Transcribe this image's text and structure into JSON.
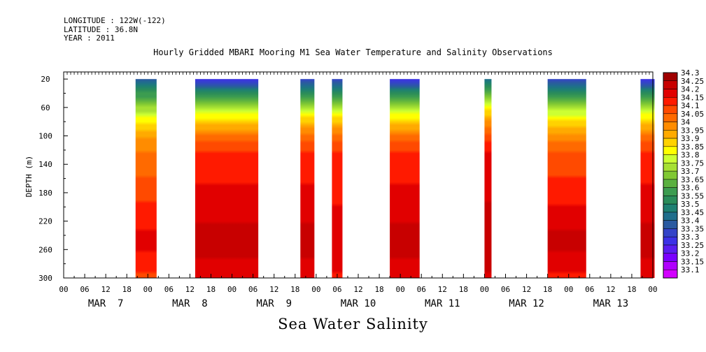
{
  "header": {
    "longitude": "LONGITUDE : 122W(-122)",
    "latitude": "LATITUDE : 36.8N",
    "year": "YEAR : 2011"
  },
  "chart_data": {
    "type": "heatmap",
    "title": "Hourly Gridded MBARI Mooring M1 Sea Water Temperature and Salinity Observations",
    "variable_label": "Sea Water Salinity",
    "ylabel": "DEPTH (m)",
    "y_axis": {
      "range": [
        300,
        10
      ],
      "inverted": true,
      "ticks": [
        20,
        60,
        100,
        140,
        180,
        220,
        260,
        300
      ]
    },
    "x_axis": {
      "range_hours": [
        0,
        168
      ],
      "hour_ticks": [
        "00",
        "06",
        "12",
        "18",
        "00",
        "06",
        "12",
        "18",
        "00",
        "06",
        "12",
        "18",
        "00",
        "06",
        "12",
        "18",
        "00",
        "06",
        "12",
        "18",
        "00",
        "06",
        "12",
        "18",
        "00",
        "06",
        "12",
        "18",
        "00"
      ],
      "day_labels": [
        "MAR  7",
        "MAR  8",
        "MAR  9",
        "MAR 10",
        "MAR 11",
        "MAR 12",
        "MAR 13"
      ]
    },
    "colorbar": {
      "levels": [
        "34.3",
        "34.25",
        "34.2",
        "34.15",
        "34.1",
        "34.05",
        "34",
        "33.95",
        "33.9",
        "33.85",
        "33.8",
        "33.75",
        "33.7",
        "33.65",
        "33.6",
        "33.55",
        "33.5",
        "33.45",
        "33.4",
        "33.35",
        "33.3",
        "33.25",
        "33.2",
        "33.15",
        "33.1"
      ],
      "colors": [
        "#a00000",
        "#c80000",
        "#e10000",
        "#ff1a00",
        "#ff4a00",
        "#ff6a00",
        "#ff8c00",
        "#ffaa00",
        "#ffd200",
        "#ffff00",
        "#ccff33",
        "#a6e033",
        "#80c833",
        "#5ab040",
        "#3c9c50",
        "#2a8c5a",
        "#1e8072",
        "#1f6e8c",
        "#2a5aa0",
        "#3444c8",
        "#3c32e6",
        "#5a1ef0",
        "#7a00ff",
        "#b000ff",
        "#d200ff"
      ]
    },
    "data_segments": [
      {
        "start_hour": 20.5,
        "end_hour": 26.5,
        "surface_salinity": 33.4,
        "mid_salinity": 34.05,
        "deep_salinity": 34.2
      },
      {
        "start_hour": 37.5,
        "end_hour": 55.5,
        "surface_salinity": 33.3,
        "mid_salinity": 34.15,
        "deep_salinity": 34.25
      },
      {
        "start_hour": 67.5,
        "end_hour": 71.5,
        "surface_salinity": 33.35,
        "mid_salinity": 34.15,
        "deep_salinity": 34.25
      },
      {
        "start_hour": 76.5,
        "end_hour": 79.5,
        "surface_salinity": 33.35,
        "mid_salinity": 34.15,
        "deep_salinity": 34.2
      },
      {
        "start_hour": 93.0,
        "end_hour": 101.5,
        "surface_salinity": 33.3,
        "mid_salinity": 34.15,
        "deep_salinity": 34.25
      },
      {
        "start_hour": 120.0,
        "end_hour": 122.0,
        "surface_salinity": 33.45,
        "mid_salinity": 34.2,
        "deep_salinity": 34.25
      },
      {
        "start_hour": 138.0,
        "end_hour": 149.0,
        "surface_salinity": 33.35,
        "mid_salinity": 34.1,
        "deep_salinity": 34.25
      },
      {
        "start_hour": 164.5,
        "end_hour": 168.5,
        "surface_salinity": 33.3,
        "mid_salinity": 34.15,
        "deep_salinity": 34.25
      }
    ]
  }
}
